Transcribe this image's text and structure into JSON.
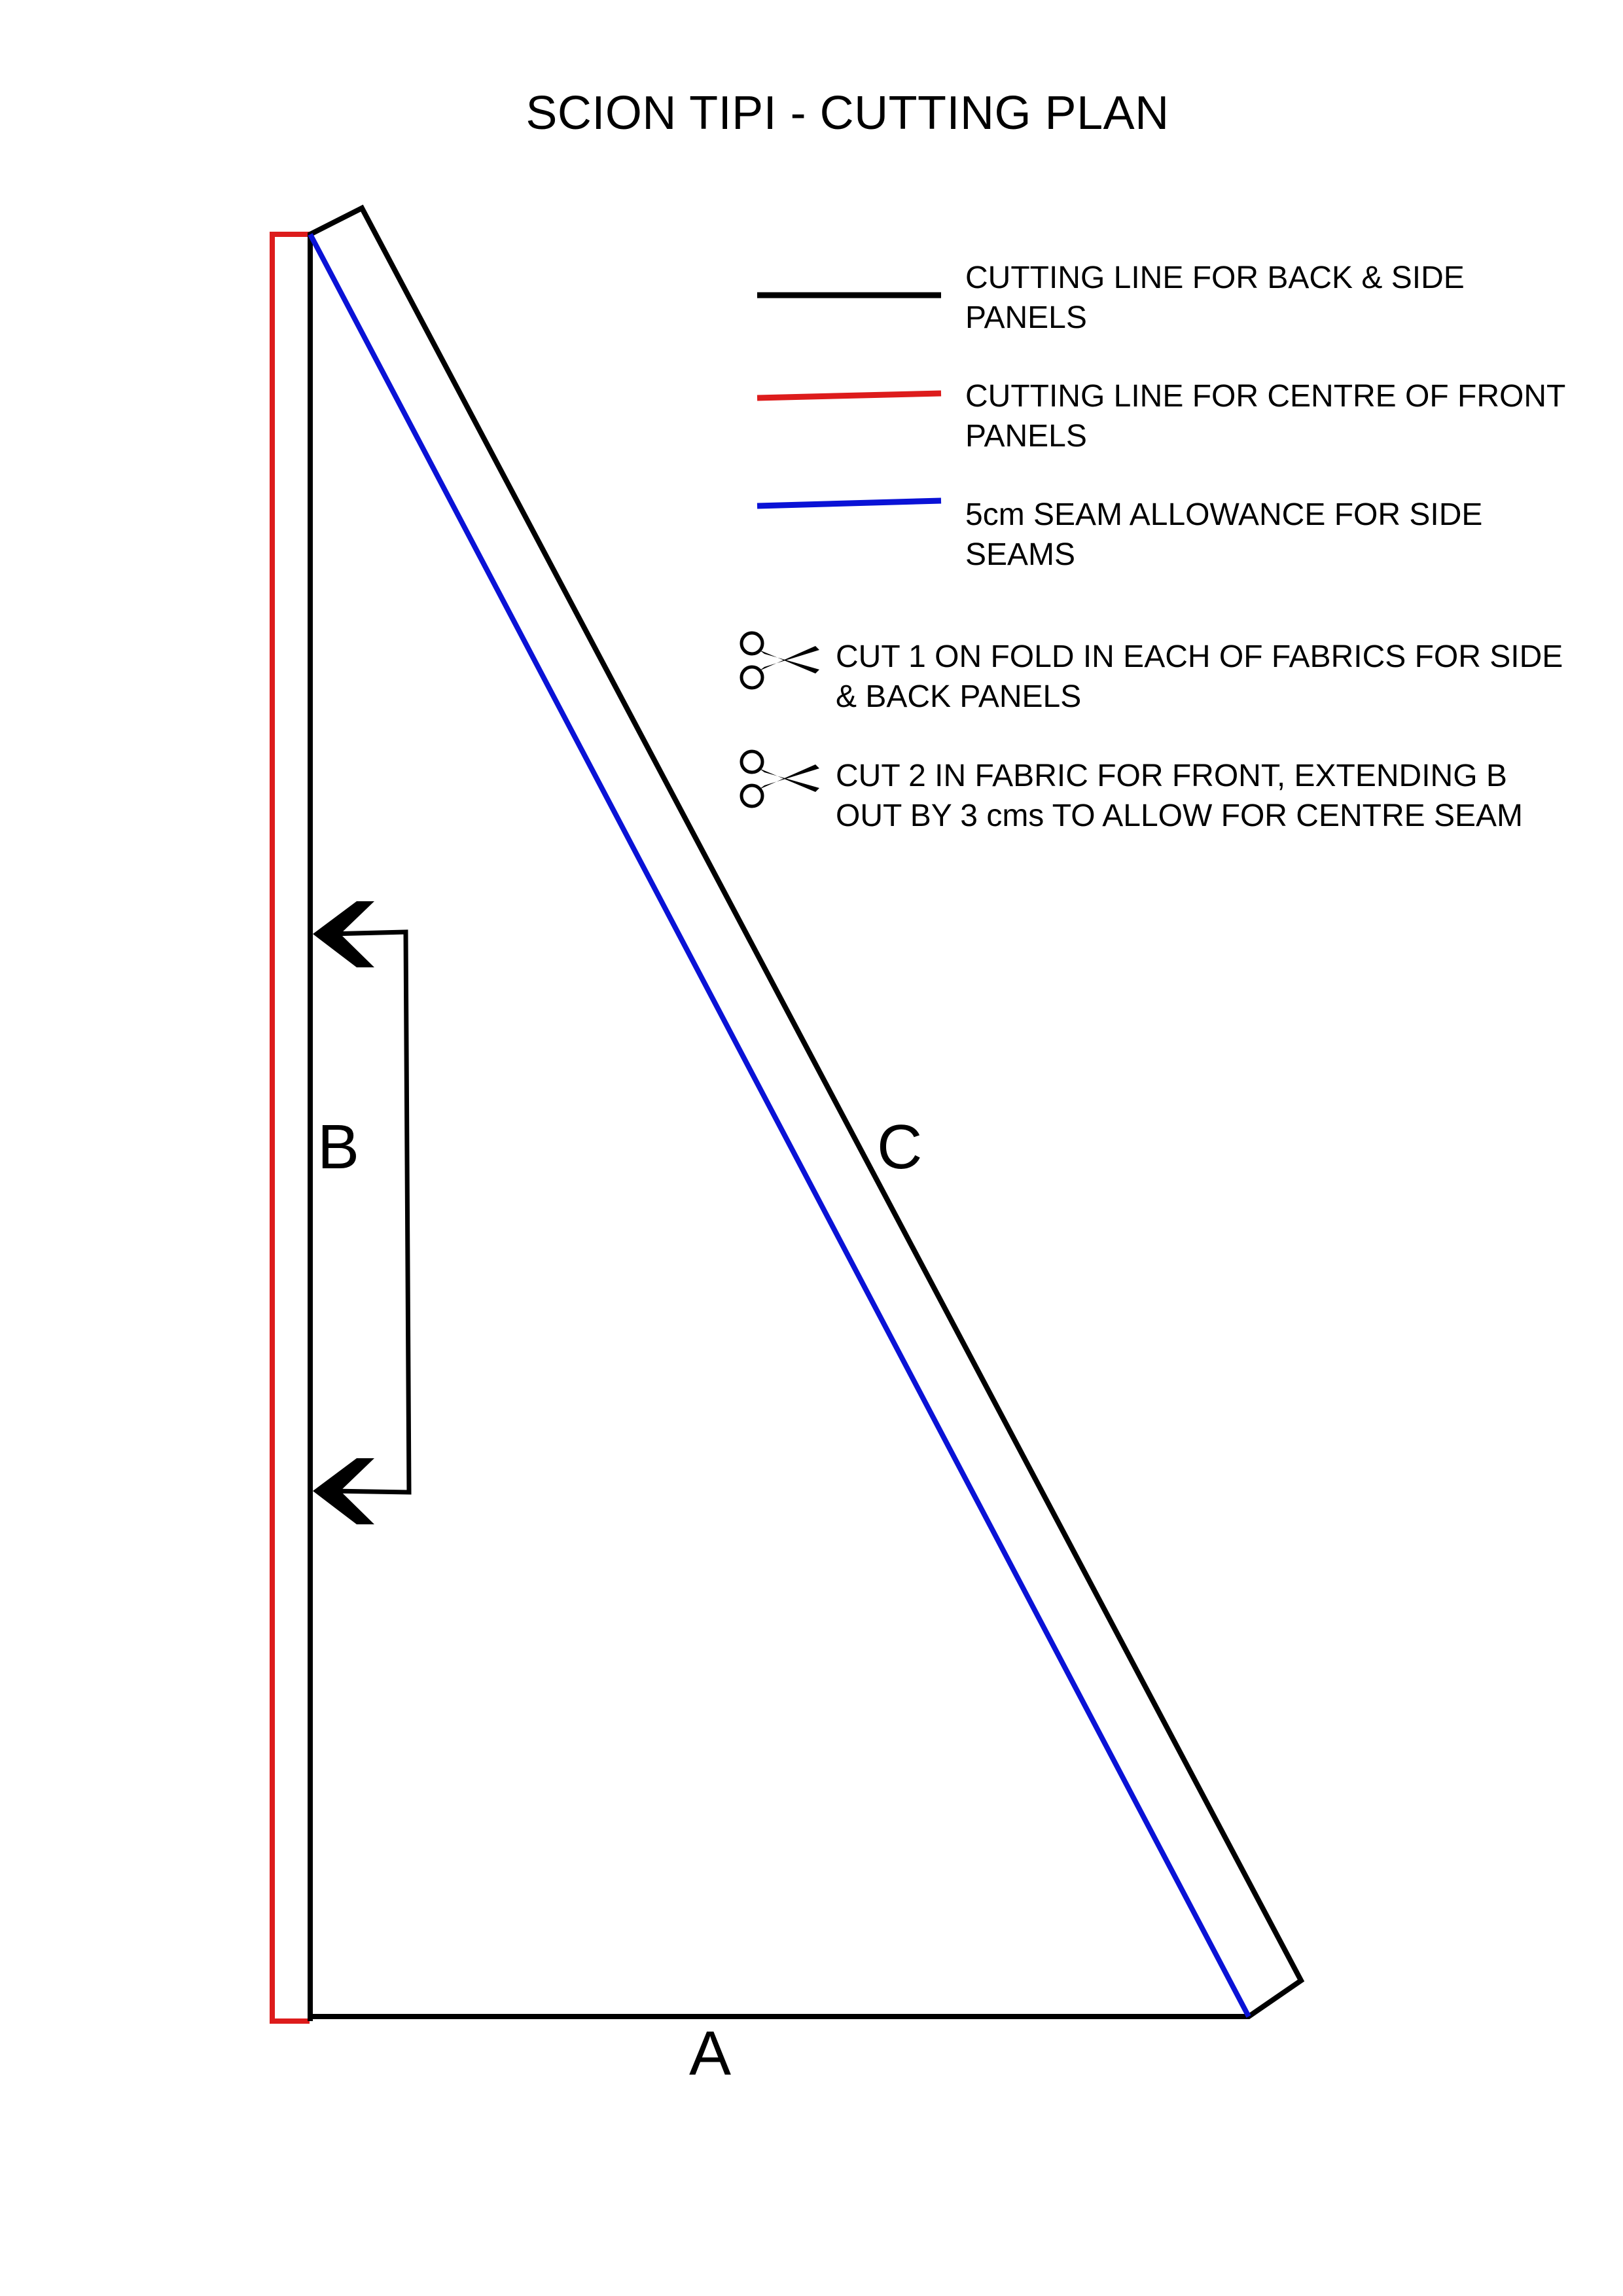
{
  "title": "SCION TIPI - CUTTING PLAN",
  "legend": [
    {
      "text": "CUTTING LINE FOR BACK & SIDE\nPANELS",
      "color": "#000000"
    },
    {
      "text": "CUTTING LINE FOR CENTRE OF FRONT\nPANELS",
      "color": "#dd1c1c"
    },
    {
      "text": "5cm SEAM ALLOWANCE FOR SIDE\nSEAMS",
      "color": "#0a12d6"
    }
  ],
  "instructions": [
    {
      "icon": "scissors-icon",
      "text": "CUT 1 ON FOLD IN EACH OF FABRICS FOR SIDE\n& BACK PANELS"
    },
    {
      "icon": "scissors-icon",
      "text": "CUT 2 IN FABRIC FOR FRONT, EXTENDING B\nOUT BY 3 cms TO ALLOW FOR CENTRE SEAM"
    }
  ],
  "dimension_labels": {
    "a": "A",
    "b": "B",
    "c": "C"
  }
}
